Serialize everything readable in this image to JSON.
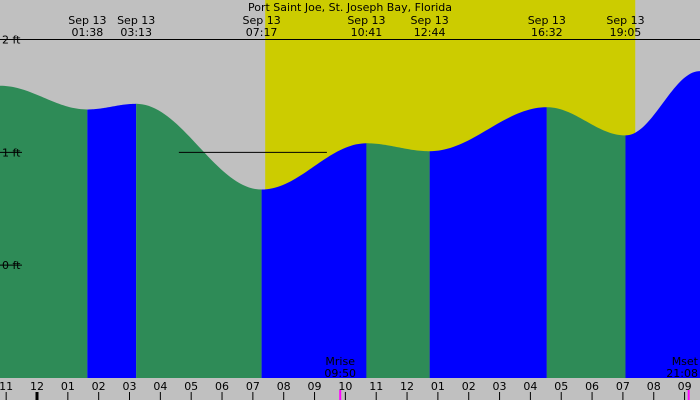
{
  "chart_data": {
    "type": "area",
    "title": "Port Saint Joe, St. Joseph Bay, Florida",
    "colors": {
      "night": "#c0c0c0",
      "day": "#cccc00",
      "rising": "#0000ff",
      "falling": "#2e8b57",
      "grid": "#000000",
      "moon_marker": "#ff00ff"
    },
    "x_range_hours": [
      -1.2,
      21.5
    ],
    "ylim_ft": [
      -1.0,
      2.35
    ],
    "y_ticks": [
      {
        "value": 2,
        "label": "2 ft"
      },
      {
        "value": 1,
        "label": "1 ft"
      },
      {
        "value": 0,
        "label": "0 ft"
      }
    ],
    "hour_ticks": [
      {
        "hour": -1,
        "label": "11"
      },
      {
        "hour": 0,
        "label": "12"
      },
      {
        "hour": 1,
        "label": "01"
      },
      {
        "hour": 2,
        "label": "02"
      },
      {
        "hour": 3,
        "label": "03"
      },
      {
        "hour": 4,
        "label": "04"
      },
      {
        "hour": 5,
        "label": "05"
      },
      {
        "hour": 6,
        "label": "06"
      },
      {
        "hour": 7,
        "label": "07"
      },
      {
        "hour": 8,
        "label": "08"
      },
      {
        "hour": 9,
        "label": "09"
      },
      {
        "hour": 10,
        "label": "10"
      },
      {
        "hour": 11,
        "label": "11"
      },
      {
        "hour": 12,
        "label": "12"
      },
      {
        "hour": 13,
        "label": "01"
      },
      {
        "hour": 14,
        "label": "02"
      },
      {
        "hour": 15,
        "label": "03"
      },
      {
        "hour": 16,
        "label": "04"
      },
      {
        "hour": 17,
        "label": "05"
      },
      {
        "hour": 18,
        "label": "06"
      },
      {
        "hour": 19,
        "label": "07"
      },
      {
        "hour": 20,
        "label": "08"
      },
      {
        "hour": 21,
        "label": "09"
      }
    ],
    "daylight": {
      "sunrise": 7.4,
      "sunset": 19.4
    },
    "events": [
      {
        "date": "Sep 13",
        "time": "01:38",
        "hour": 1.633,
        "height": 1.38
      },
      {
        "date": "Sep 13",
        "time": "03:13",
        "hour": 3.217,
        "height": 1.43
      },
      {
        "date": "Sep 13",
        "time": "07:17",
        "hour": 7.283,
        "height": 0.67
      },
      {
        "date": "Sep 13",
        "time": "10:41",
        "hour": 10.683,
        "height": 1.08
      },
      {
        "date": "Sep 13",
        "time": "12:44",
        "hour": 12.733,
        "height": 1.01
      },
      {
        "date": "Sep 13",
        "time": "16:32",
        "hour": 16.533,
        "height": 1.4
      },
      {
        "date": "Sep 13",
        "time": "19:05",
        "hour": 19.083,
        "height": 1.15
      }
    ],
    "start_height": 1.59,
    "end_height": 1.72,
    "moon_events": [
      {
        "label": "Mrise",
        "time": "09:50",
        "hour": 9.833
      },
      {
        "label": "Mset",
        "time": "21:08",
        "hour": 21.133
      }
    ],
    "reference_lines": [
      {
        "value": 2.0,
        "from_hour": -1.2,
        "to_hour": 21.5
      },
      {
        "value": 1.0,
        "from_hour": 4.6,
        "to_hour": 9.4
      }
    ]
  }
}
